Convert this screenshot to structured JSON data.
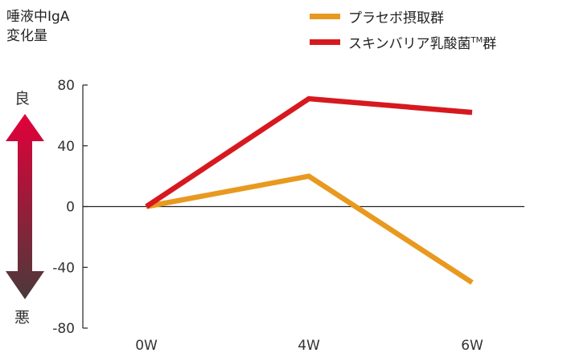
{
  "header": {
    "ylabel_line1": "唾液中IgA",
    "ylabel_line2": "変化量"
  },
  "indicator": {
    "good_label": "良",
    "bad_label": "悪",
    "top_color": "#e3003a",
    "bottom_color": "#4a3a3a"
  },
  "legend": {
    "placement": "top-right",
    "items": [
      {
        "label": "プラセボ摂取群",
        "color": "#e8991f"
      },
      {
        "label": "スキンバリア乳酸菌",
        "sup": "TM",
        "suffix": "群",
        "color": "#d7191f"
      }
    ]
  },
  "chart_data": {
    "type": "line",
    "x": [
      "0W",
      "4W",
      "6W"
    ],
    "ylim": [
      -80,
      80
    ],
    "yticks": [
      "80",
      "40",
      "0",
      "-40",
      "-80"
    ],
    "ytick_values": [
      80,
      40,
      0,
      -40,
      -80
    ],
    "series": [
      {
        "name": "プラセボ摂取群",
        "values": [
          0,
          20,
          -50
        ],
        "color": "#e8991f"
      },
      {
        "name": "スキンバリア乳酸菌TM群",
        "values": [
          0,
          71,
          62
        ],
        "color": "#d7191f"
      }
    ]
  }
}
